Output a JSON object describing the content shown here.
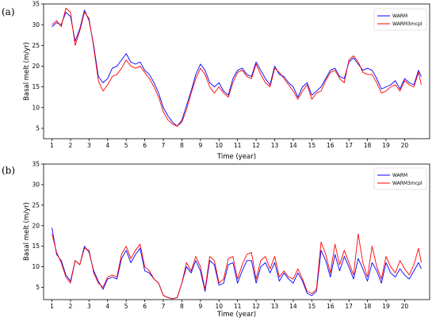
{
  "chart_data": [
    {
      "panel": "(a)",
      "type": "line",
      "xlabel": "Time (year)",
      "ylabel": "Basal melt (m/yr)",
      "xticks": [
        "1",
        "2",
        "3",
        "4",
        "5",
        "6",
        "7",
        "8",
        "9",
        "10",
        "11",
        "12",
        "13",
        "14",
        "15",
        "16",
        "17",
        "18",
        "19",
        "20"
      ],
      "yticks": [
        5,
        10,
        15,
        20,
        25,
        30,
        35
      ],
      "xlim": [
        0.55,
        21.35
      ],
      "ylim": [
        2.5,
        35
      ],
      "grid": false,
      "legend": "top-right",
      "series": [
        {
          "name": "WARM",
          "color": "#0000ff",
          "x": [
            1.0,
            1.25,
            1.5,
            1.75,
            2.0,
            2.25,
            2.5,
            2.75,
            3.0,
            3.25,
            3.5,
            3.75,
            4.0,
            4.25,
            4.5,
            4.75,
            5.0,
            5.25,
            5.5,
            5.75,
            6.0,
            6.25,
            6.5,
            6.75,
            7.0,
            7.25,
            7.5,
            7.75,
            8.0,
            8.25,
            8.5,
            8.75,
            9.0,
            9.25,
            9.5,
            9.75,
            10.0,
            10.25,
            10.5,
            10.75,
            11.0,
            11.25,
            11.5,
            11.75,
            12.0,
            12.25,
            12.5,
            12.75,
            13.0,
            13.25,
            13.5,
            13.75,
            14.0,
            14.25,
            14.5,
            14.75,
            15.0,
            15.25,
            15.5,
            15.75,
            16.0,
            16.25,
            16.5,
            16.75,
            17.0,
            17.25,
            17.5,
            17.75,
            18.0,
            18.25,
            18.5,
            18.75,
            19.0,
            19.25,
            19.5,
            19.75,
            20.0,
            20.25,
            20.5,
            20.75,
            20.9
          ],
          "values": [
            29.5,
            30.5,
            30.0,
            33.0,
            32.0,
            26.0,
            29.0,
            33.5,
            31.0,
            25.0,
            17.5,
            16.0,
            17.0,
            19.5,
            20.0,
            21.5,
            23.0,
            21.0,
            20.5,
            21.0,
            19.0,
            18.0,
            16.0,
            13.5,
            10.0,
            8.0,
            6.5,
            5.5,
            7.0,
            10.5,
            14.0,
            18.0,
            20.5,
            19.0,
            16.0,
            15.0,
            16.0,
            14.0,
            13.0,
            17.0,
            19.0,
            19.5,
            18.0,
            17.5,
            21.0,
            19.0,
            17.0,
            15.5,
            20.0,
            18.0,
            17.5,
            16.0,
            15.0,
            12.5,
            15.0,
            16.0,
            13.0,
            14.0,
            15.0,
            17.0,
            19.0,
            19.5,
            17.5,
            17.0,
            21.0,
            22.0,
            20.5,
            19.0,
            19.5,
            19.0,
            17.0,
            14.5,
            15.0,
            15.5,
            16.5,
            14.5,
            17.0,
            16.0,
            15.5,
            19.0,
            17.5
          ]
        },
        {
          "name": "WARM3mcpl",
          "color": "#ff0000",
          "x": [
            1.0,
            1.25,
            1.5,
            1.75,
            2.0,
            2.25,
            2.5,
            2.75,
            3.0,
            3.25,
            3.5,
            3.75,
            4.0,
            4.25,
            4.5,
            4.75,
            5.0,
            5.25,
            5.5,
            5.75,
            6.0,
            6.25,
            6.5,
            6.75,
            7.0,
            7.25,
            7.5,
            7.75,
            8.0,
            8.25,
            8.5,
            8.75,
            9.0,
            9.25,
            9.5,
            9.75,
            10.0,
            10.25,
            10.5,
            10.75,
            11.0,
            11.25,
            11.5,
            11.75,
            12.0,
            12.25,
            12.5,
            12.75,
            13.0,
            13.25,
            13.5,
            13.75,
            14.0,
            14.25,
            14.5,
            14.75,
            15.0,
            15.25,
            15.5,
            15.75,
            16.0,
            16.25,
            16.5,
            16.75,
            17.0,
            17.25,
            17.5,
            17.75,
            18.0,
            18.25,
            18.5,
            18.75,
            19.0,
            19.25,
            19.5,
            19.75,
            20.0,
            20.25,
            20.5,
            20.75,
            20.9
          ],
          "values": [
            30.0,
            31.0,
            29.5,
            34.0,
            33.0,
            25.0,
            28.5,
            33.0,
            31.5,
            24.5,
            16.5,
            14.0,
            15.5,
            17.5,
            18.0,
            19.5,
            21.5,
            20.0,
            19.5,
            20.0,
            18.5,
            17.0,
            15.0,
            12.5,
            9.0,
            7.0,
            6.0,
            5.5,
            6.5,
            9.5,
            13.5,
            17.0,
            19.5,
            18.0,
            15.0,
            13.5,
            15.0,
            13.5,
            12.5,
            16.0,
            18.5,
            19.0,
            17.5,
            17.0,
            20.5,
            18.0,
            16.0,
            15.0,
            19.5,
            18.5,
            17.0,
            15.5,
            14.0,
            12.0,
            14.0,
            15.5,
            12.0,
            13.5,
            14.0,
            16.5,
            18.5,
            19.0,
            17.0,
            16.0,
            21.5,
            22.5,
            21.0,
            18.5,
            18.0,
            18.0,
            16.0,
            13.5,
            14.0,
            15.0,
            15.5,
            14.0,
            16.5,
            15.5,
            15.0,
            18.5,
            15.5
          ]
        }
      ]
    },
    {
      "panel": "(b)",
      "type": "line",
      "xlabel": "Time (year)",
      "ylabel": "Basal melt (m/yr)",
      "xticks": [
        "1",
        "2",
        "3",
        "4",
        "5",
        "6",
        "7",
        "8",
        "9",
        "10",
        "11",
        "12",
        "13",
        "14",
        "15",
        "16",
        "17",
        "18",
        "19",
        "20"
      ],
      "yticks": [
        5,
        10,
        15,
        20,
        25,
        30,
        35
      ],
      "xlim": [
        0.55,
        21.35
      ],
      "ylim": [
        2.0,
        35
      ],
      "grid": false,
      "legend": "top-right",
      "series": [
        {
          "name": "WARM",
          "color": "#0000ff",
          "x": [
            1.0,
            1.25,
            1.5,
            1.75,
            2.0,
            2.25,
            2.5,
            2.75,
            3.0,
            3.25,
            3.5,
            3.75,
            4.0,
            4.25,
            4.5,
            4.75,
            5.0,
            5.25,
            5.5,
            5.75,
            6.0,
            6.25,
            6.5,
            6.75,
            7.0,
            7.25,
            7.5,
            7.75,
            8.0,
            8.25,
            8.5,
            8.75,
            9.0,
            9.25,
            9.5,
            9.75,
            10.0,
            10.25,
            10.5,
            10.75,
            11.0,
            11.25,
            11.5,
            11.75,
            12.0,
            12.25,
            12.5,
            12.75,
            13.0,
            13.25,
            13.5,
            13.75,
            14.0,
            14.25,
            14.5,
            14.75,
            15.0,
            15.25,
            15.5,
            15.75,
            16.0,
            16.25,
            16.5,
            16.75,
            17.0,
            17.25,
            17.5,
            17.75,
            18.0,
            18.25,
            18.5,
            18.75,
            19.0,
            19.25,
            19.5,
            19.75,
            20.0,
            20.25,
            20.5,
            20.75,
            20.9
          ],
          "values": [
            19.5,
            13.0,
            11.5,
            8.0,
            6.5,
            11.5,
            10.5,
            15.0,
            13.5,
            9.0,
            6.5,
            4.5,
            7.0,
            7.5,
            7.0,
            12.0,
            14.0,
            11.0,
            13.0,
            14.5,
            9.0,
            8.5,
            7.0,
            6.0,
            3.0,
            2.5,
            2.2,
            2.5,
            6.0,
            10.0,
            8.5,
            11.5,
            9.0,
            4.0,
            11.5,
            10.5,
            5.5,
            6.0,
            10.5,
            11.0,
            6.0,
            9.0,
            11.5,
            11.5,
            6.0,
            10.0,
            11.0,
            8.5,
            11.0,
            6.5,
            8.5,
            7.0,
            6.0,
            8.5,
            6.5,
            3.5,
            3.0,
            4.0,
            14.0,
            11.5,
            7.5,
            13.0,
            9.0,
            12.5,
            10.0,
            7.0,
            12.0,
            9.5,
            6.5,
            11.0,
            9.0,
            6.0,
            11.0,
            8.5,
            7.5,
            9.5,
            8.0,
            7.0,
            9.0,
            11.0,
            9.5
          ]
        },
        {
          "name": "WARM3mcpl",
          "color": "#ff0000",
          "x": [
            1.0,
            1.25,
            1.5,
            1.75,
            2.0,
            2.25,
            2.5,
            2.75,
            3.0,
            3.25,
            3.5,
            3.75,
            4.0,
            4.25,
            4.5,
            4.75,
            5.0,
            5.25,
            5.5,
            5.75,
            6.0,
            6.25,
            6.5,
            6.75,
            7.0,
            7.25,
            7.5,
            7.75,
            8.0,
            8.25,
            8.5,
            8.75,
            9.0,
            9.25,
            9.5,
            9.75,
            10.0,
            10.25,
            10.5,
            10.75,
            11.0,
            11.25,
            11.5,
            11.75,
            12.0,
            12.25,
            12.5,
            12.75,
            13.0,
            13.25,
            13.5,
            13.75,
            14.0,
            14.25,
            14.5,
            14.75,
            15.0,
            15.25,
            15.5,
            15.75,
            16.0,
            16.25,
            16.5,
            16.75,
            17.0,
            17.25,
            17.5,
            17.75,
            18.0,
            18.25,
            18.5,
            18.75,
            19.0,
            19.25,
            19.5,
            19.75,
            20.0,
            20.25,
            20.5,
            20.75,
            20.9
          ],
          "values": [
            18.0,
            13.5,
            11.0,
            7.5,
            6.0,
            11.5,
            10.5,
            14.5,
            14.0,
            8.5,
            6.0,
            5.0,
            7.5,
            8.0,
            7.5,
            13.0,
            15.0,
            12.0,
            14.0,
            15.5,
            10.0,
            9.0,
            7.0,
            6.0,
            3.0,
            2.5,
            2.2,
            2.5,
            6.0,
            11.0,
            9.0,
            12.5,
            10.0,
            4.5,
            12.5,
            11.5,
            6.0,
            7.0,
            12.0,
            12.5,
            7.0,
            10.5,
            13.0,
            13.5,
            7.0,
            11.5,
            12.5,
            9.5,
            12.5,
            7.5,
            9.0,
            7.5,
            7.0,
            9.5,
            7.0,
            4.0,
            3.5,
            4.5,
            16.0,
            13.0,
            8.5,
            15.5,
            10.5,
            14.0,
            11.0,
            8.0,
            18.0,
            11.0,
            7.5,
            15.0,
            10.0,
            7.0,
            12.5,
            10.0,
            8.5,
            11.5,
            9.5,
            8.0,
            10.5,
            14.5,
            11.0
          ]
        }
      ]
    }
  ]
}
